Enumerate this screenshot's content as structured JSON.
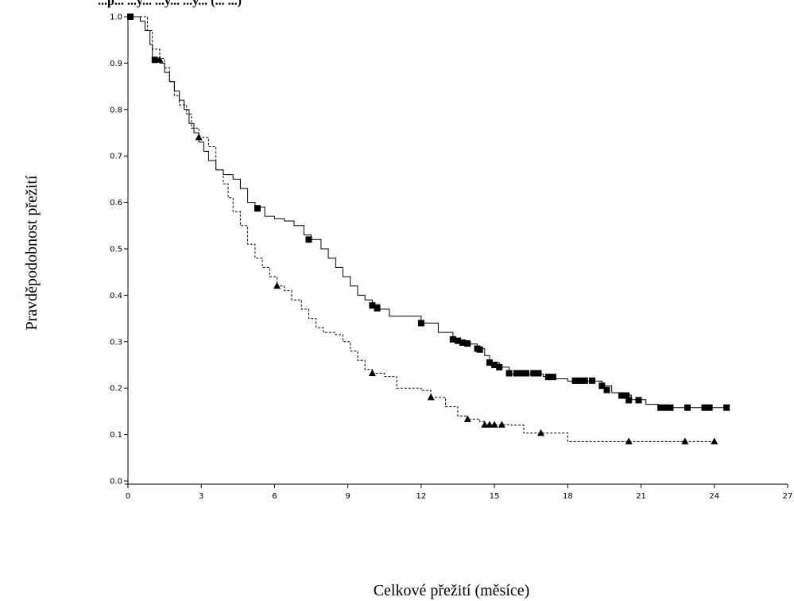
{
  "chart_data": {
    "type": "line",
    "title": "...p... ...y... ...y... ...y... (... ...)",
    "xlabel": "Celkové přežití (měsíce)",
    "ylabel": "Pravděpodobnost přežití",
    "xlim": [
      0,
      27
    ],
    "ylim": [
      0,
      1.0
    ],
    "x_ticks": [
      0,
      3,
      6,
      9,
      12,
      15,
      18,
      21,
      24,
      27
    ],
    "y_ticks": [
      0.0,
      0.1,
      0.2,
      0.3,
      0.4,
      0.5,
      0.6,
      0.7,
      0.8,
      0.9,
      1.0
    ],
    "grid": false,
    "series": [
      {
        "style": "solid",
        "marker": "square",
        "points": [
          [
            0,
            1.0
          ],
          [
            0.3,
            1.0
          ],
          [
            0.5,
            0.99
          ],
          [
            0.7,
            0.97
          ],
          [
            0.9,
            0.94
          ],
          [
            1.0,
            0.91
          ],
          [
            1.3,
            0.9
          ],
          [
            1.5,
            0.88
          ],
          [
            1.7,
            0.86
          ],
          [
            1.9,
            0.84
          ],
          [
            2.1,
            0.82
          ],
          [
            2.3,
            0.8
          ],
          [
            2.5,
            0.77
          ],
          [
            2.7,
            0.75
          ],
          [
            2.9,
            0.73
          ],
          [
            3.1,
            0.71
          ],
          [
            3.3,
            0.69
          ],
          [
            3.6,
            0.67
          ],
          [
            3.9,
            0.66
          ],
          [
            4.3,
            0.65
          ],
          [
            4.6,
            0.63
          ],
          [
            4.9,
            0.6
          ],
          [
            5.2,
            0.59
          ],
          [
            5.6,
            0.57
          ],
          [
            6.0,
            0.565
          ],
          [
            6.4,
            0.56
          ],
          [
            6.8,
            0.55
          ],
          [
            7.2,
            0.53
          ],
          [
            7.5,
            0.52
          ],
          [
            7.9,
            0.5
          ],
          [
            8.2,
            0.48
          ],
          [
            8.5,
            0.46
          ],
          [
            8.8,
            0.44
          ],
          [
            9.1,
            0.42
          ],
          [
            9.4,
            0.4
          ],
          [
            9.7,
            0.39
          ],
          [
            10.0,
            0.38
          ],
          [
            10.3,
            0.37
          ],
          [
            10.7,
            0.355
          ],
          [
            11.5,
            0.355
          ],
          [
            12.0,
            0.34
          ],
          [
            12.7,
            0.32
          ],
          [
            13.3,
            0.305
          ],
          [
            13.6,
            0.3
          ],
          [
            14.0,
            0.295
          ],
          [
            14.3,
            0.285
          ],
          [
            14.6,
            0.27
          ],
          [
            14.8,
            0.255
          ],
          [
            15.2,
            0.245
          ],
          [
            15.6,
            0.23
          ],
          [
            16.3,
            0.23
          ],
          [
            17.0,
            0.225
          ],
          [
            17.5,
            0.22
          ],
          [
            18.0,
            0.215
          ],
          [
            19.0,
            0.215
          ],
          [
            19.4,
            0.205
          ],
          [
            19.8,
            0.19
          ],
          [
            20.3,
            0.185
          ],
          [
            20.6,
            0.175
          ],
          [
            21.2,
            0.165
          ],
          [
            21.7,
            0.158
          ],
          [
            22.5,
            0.158
          ],
          [
            24.5,
            0.158
          ]
        ],
        "censored": [
          [
            0.1,
            1.0
          ],
          [
            1.1,
            0.907
          ],
          [
            5.3,
            0.587
          ],
          [
            7.4,
            0.52
          ],
          [
            10.0,
            0.378
          ],
          [
            10.2,
            0.372
          ],
          [
            12.0,
            0.34
          ],
          [
            13.3,
            0.305
          ],
          [
            13.5,
            0.302
          ],
          [
            13.7,
            0.298
          ],
          [
            13.9,
            0.296
          ],
          [
            14.3,
            0.285
          ],
          [
            14.4,
            0.283
          ],
          [
            14.8,
            0.255
          ],
          [
            15.0,
            0.25
          ],
          [
            15.2,
            0.245
          ],
          [
            15.6,
            0.232
          ],
          [
            15.9,
            0.232
          ],
          [
            16.1,
            0.232
          ],
          [
            16.3,
            0.232
          ],
          [
            16.6,
            0.232
          ],
          [
            16.8,
            0.232
          ],
          [
            17.2,
            0.224
          ],
          [
            17.4,
            0.224
          ],
          [
            18.3,
            0.216
          ],
          [
            18.5,
            0.216
          ],
          [
            18.7,
            0.216
          ],
          [
            19.0,
            0.216
          ],
          [
            19.4,
            0.205
          ],
          [
            19.6,
            0.196
          ],
          [
            20.2,
            0.184
          ],
          [
            20.4,
            0.184
          ],
          [
            20.5,
            0.174
          ],
          [
            20.9,
            0.174
          ],
          [
            21.8,
            0.158
          ],
          [
            22.0,
            0.158
          ],
          [
            22.2,
            0.158
          ],
          [
            22.9,
            0.158
          ],
          [
            23.6,
            0.158
          ],
          [
            23.8,
            0.158
          ],
          [
            24.5,
            0.158
          ]
        ]
      },
      {
        "style": "dashed",
        "marker": "triangle",
        "points": [
          [
            0,
            1.0
          ],
          [
            0.6,
            1.0
          ],
          [
            0.8,
            0.97
          ],
          [
            1.0,
            0.93
          ],
          [
            1.3,
            0.91
          ],
          [
            1.5,
            0.89
          ],
          [
            1.7,
            0.86
          ],
          [
            1.9,
            0.83
          ],
          [
            2.1,
            0.81
          ],
          [
            2.4,
            0.79
          ],
          [
            2.6,
            0.76
          ],
          [
            2.9,
            0.74
          ],
          [
            3.3,
            0.72
          ],
          [
            3.6,
            0.67
          ],
          [
            3.9,
            0.64
          ],
          [
            4.1,
            0.61
          ],
          [
            4.3,
            0.58
          ],
          [
            4.6,
            0.55
          ],
          [
            4.9,
            0.51
          ],
          [
            5.2,
            0.48
          ],
          [
            5.5,
            0.46
          ],
          [
            5.8,
            0.44
          ],
          [
            6.1,
            0.42
          ],
          [
            6.4,
            0.41
          ],
          [
            6.7,
            0.39
          ],
          [
            7.1,
            0.37
          ],
          [
            7.4,
            0.35
          ],
          [
            7.7,
            0.33
          ],
          [
            8.0,
            0.32
          ],
          [
            8.5,
            0.315
          ],
          [
            8.8,
            0.3
          ],
          [
            9.1,
            0.28
          ],
          [
            9.4,
            0.26
          ],
          [
            9.7,
            0.24
          ],
          [
            10.0,
            0.232
          ],
          [
            10.5,
            0.225
          ],
          [
            11.0,
            0.2
          ],
          [
            12.0,
            0.195
          ],
          [
            12.4,
            0.18
          ],
          [
            13.0,
            0.16
          ],
          [
            13.5,
            0.14
          ],
          [
            13.9,
            0.133
          ],
          [
            14.4,
            0.128
          ],
          [
            14.6,
            0.121
          ],
          [
            15.3,
            0.121
          ],
          [
            15.7,
            0.12
          ],
          [
            16.2,
            0.103
          ],
          [
            17.0,
            0.103
          ],
          [
            18.0,
            0.085
          ],
          [
            20.0,
            0.085
          ],
          [
            24.0,
            0.085
          ]
        ],
        "censored": [
          [
            1.3,
            0.907
          ],
          [
            2.9,
            0.74
          ],
          [
            6.1,
            0.42
          ],
          [
            10.0,
            0.232
          ],
          [
            12.4,
            0.18
          ],
          [
            13.9,
            0.133
          ],
          [
            14.6,
            0.121
          ],
          [
            14.8,
            0.121
          ],
          [
            15.0,
            0.121
          ],
          [
            15.3,
            0.121
          ],
          [
            16.9,
            0.103
          ],
          [
            20.5,
            0.085
          ],
          [
            22.8,
            0.085
          ],
          [
            24.0,
            0.085
          ]
        ]
      }
    ]
  }
}
